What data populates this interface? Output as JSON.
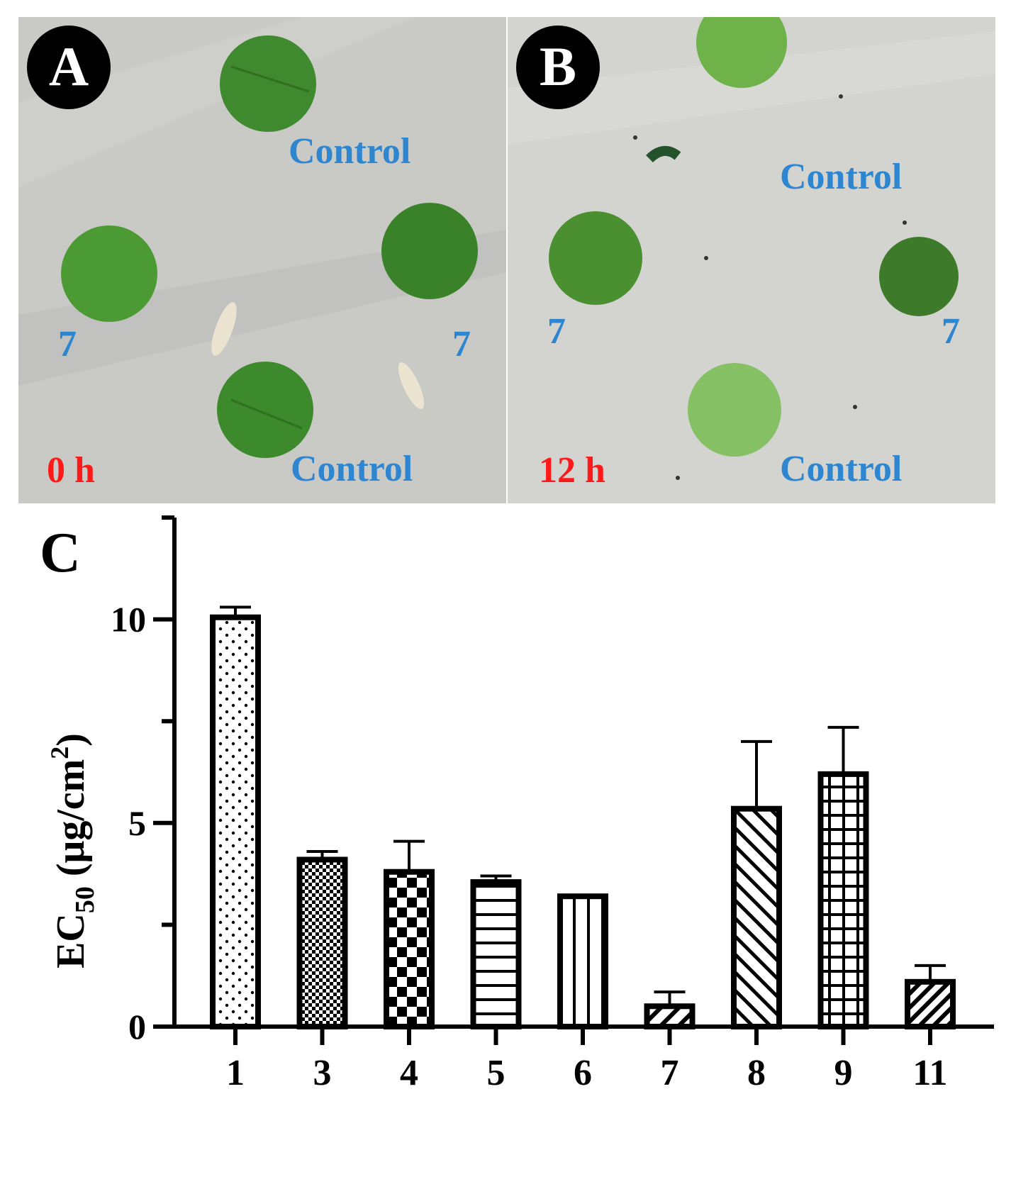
{
  "panels": {
    "a": {
      "letter": "A",
      "time": "0 h",
      "labels": {
        "control_top": "Control",
        "control_bottom": "Control",
        "left": "7",
        "right": "7"
      }
    },
    "b": {
      "letter": "B",
      "time": "12 h",
      "labels": {
        "control_top": "Control",
        "control_bottom": "Control",
        "left": "7",
        "right": "7"
      }
    },
    "c": {
      "letter": "C"
    }
  },
  "colors": {
    "label_blue": "#2e86d0",
    "time_red": "#ff1a1a",
    "leaf_green": "#3f8a2e",
    "paper": "#c9c9c6"
  },
  "chart_data": {
    "type": "bar",
    "title": "",
    "xlabel": "",
    "ylabel_main": "EC",
    "ylabel_sub": "50",
    "ylabel_unit": " (μg/cm",
    "ylabel_sup": "2",
    "ylabel_close": ")",
    "ylim": [
      0,
      12.5
    ],
    "yticks": [
      0,
      5,
      10
    ],
    "categories": [
      "1",
      "3",
      "4",
      "5",
      "6",
      "7",
      "8",
      "9",
      "11"
    ],
    "values": [
      10.05,
      4.1,
      3.8,
      3.55,
      3.2,
      0.5,
      5.35,
      6.2,
      1.1
    ],
    "errors": [
      0.25,
      0.2,
      0.75,
      0.15,
      0.03,
      0.35,
      1.65,
      1.15,
      0.4
    ],
    "patterns": [
      "dots",
      "fine-checker",
      "checker",
      "horizontal",
      "vertical",
      "diagonal-forward",
      "diagonal-back",
      "grid",
      "diagonal-forward-dense"
    ]
  }
}
